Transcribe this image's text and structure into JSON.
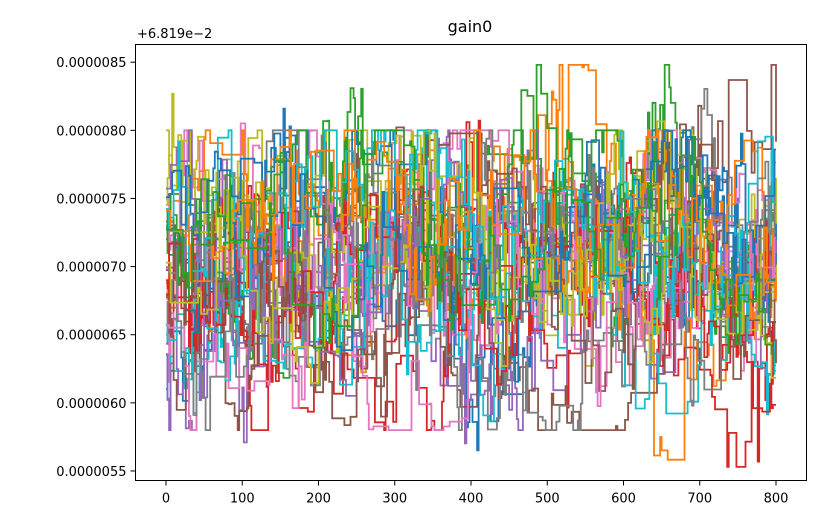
{
  "chart_data": {
    "type": "line",
    "title": "gain0",
    "offset_label": "+6.819e−2",
    "offset": 0.06819,
    "xlabel": "",
    "ylabel": "",
    "xlim": [
      -40,
      840
    ],
    "ylim": [
      5.43e-06,
      8.63e-06
    ],
    "x_ticks": [
      0,
      100,
      200,
      300,
      400,
      500,
      600,
      700,
      800
    ],
    "y_ticks": [
      {
        "value": 5.5e-06,
        "label": "0.0000055"
      },
      {
        "value": 6e-06,
        "label": "0.0000060"
      },
      {
        "value": 6.5e-06,
        "label": "0.0000065"
      },
      {
        "value": 7e-06,
        "label": "0.0000070"
      },
      {
        "value": 7.5e-06,
        "label": "0.0000075"
      },
      {
        "value": 8e-06,
        "label": "0.0000080"
      },
      {
        "value": 8.5e-06,
        "label": "0.0000085"
      }
    ],
    "grid": false,
    "legend": "none",
    "x_range": [
      0,
      800
    ],
    "value_range": [
      5.53e-06,
      8.48e-06
    ],
    "series_count": 30,
    "colors": [
      "#1f77b4",
      "#ff7f0e",
      "#2ca02c",
      "#d62728",
      "#9467bd",
      "#8c564b",
      "#e377c2",
      "#7f7f7f",
      "#bcbd22",
      "#17becf"
    ],
    "series": [
      {
        "values": [
          6.1e-06,
          6.5e-06,
          7e-06,
          7.8e-06,
          7.4e-06,
          7.2e-06,
          6.8e-06,
          7.1e-06,
          6e-06,
          6.4e-06,
          7e-06,
          7.5e-06,
          7.2e-06,
          6.9e-06,
          7e-06,
          7.2e-06,
          6.8e-06
        ]
      },
      {
        "values": [
          6.6e-06,
          6.9e-06,
          6.7e-06,
          7.1e-06,
          7e-06,
          6.6e-06,
          7.2e-06,
          7.3e-06,
          6.8e-06,
          7.5e-06,
          8e-06,
          8.5e-06,
          7e-06,
          5.6e-06,
          6.5e-06,
          6.7e-06,
          6.9e-06
        ]
      },
      {
        "values": [
          7.3e-06,
          7.4e-06,
          6.8e-06,
          6.4e-06,
          7.7e-06,
          8e-06,
          7.2e-06,
          6.9e-06,
          7.5e-06,
          7.8e-06,
          8.2e-06,
          7.2e-06,
          6.7e-06,
          8.3e-06,
          7e-06,
          6.6e-06,
          7.3e-06
        ]
      },
      {
        "values": [
          6.9e-06,
          6.6e-06,
          7.2e-06,
          7e-06,
          6.5e-06,
          7.1e-06,
          6.7e-06,
          7.4e-06,
          7.8e-06,
          7e-06,
          7.3e-06,
          6.9e-06,
          7.5e-06,
          6.8e-06,
          6.2e-06,
          5.6e-06,
          6.4e-06
        ]
      },
      {
        "values": [
          7e-06,
          7.2e-06,
          6.1e-06,
          6.9e-06,
          7.3e-06,
          6.8e-06,
          7.1e-06,
          6.5e-06,
          5.8e-06,
          6.6e-06,
          7e-06,
          7.2e-06,
          6.8e-06,
          6.4e-06,
          7e-06,
          6.7e-06,
          6.5e-06
        ]
      },
      {
        "values": [
          7.2e-06,
          6.9e-06,
          7e-06,
          6.7e-06,
          7.1e-06,
          7.4e-06,
          7.6e-06,
          7e-06,
          7.2e-06,
          7.7e-06,
          7.1e-06,
          7.3e-06,
          6.9e-06,
          7.5e-06,
          7.8e-06,
          8e-06,
          8.3e-06
        ]
      },
      {
        "values": [
          6.5e-06,
          7e-06,
          7.7e-06,
          7.2e-06,
          6.8e-06,
          6.6e-06,
          7.3e-06,
          6.9e-06,
          6.5e-06,
          7.1e-06,
          6.8e-06,
          6.4e-06,
          6.1e-06,
          6.7e-06,
          7e-06,
          6.6e-06,
          6.2e-06
        ]
      },
      {
        "values": [
          6.8e-06,
          7.1e-06,
          6.9e-06,
          6.6e-06,
          7e-06,
          7.2e-06,
          6.9e-06,
          7.3e-06,
          7.1e-06,
          6.8e-06,
          7.2e-06,
          7.5e-06,
          7.1e-06,
          6.9e-06,
          8.3e-06,
          7.2e-06,
          6.9e-06
        ]
      },
      {
        "values": [
          8e-06,
          7.6e-06,
          7.3e-06,
          7e-06,
          6.8e-06,
          7.1e-06,
          7.4e-06,
          6.9e-06,
          7.2e-06,
          7e-06,
          6.8e-06,
          6.6e-06,
          7.2e-06,
          7.7e-06,
          6.9e-06,
          7.1e-06,
          7.3e-06
        ]
      },
      {
        "values": [
          5.9e-06,
          6.3e-06,
          6.8e-06,
          7.1e-06,
          6.6e-06,
          7e-06,
          7.3e-06,
          7.5e-06,
          6.9e-06,
          7.2e-06,
          6.7e-06,
          7e-06,
          7.4e-06,
          6.8e-06,
          7.1e-06,
          6.5e-06,
          7.6e-06
        ]
      }
    ]
  }
}
